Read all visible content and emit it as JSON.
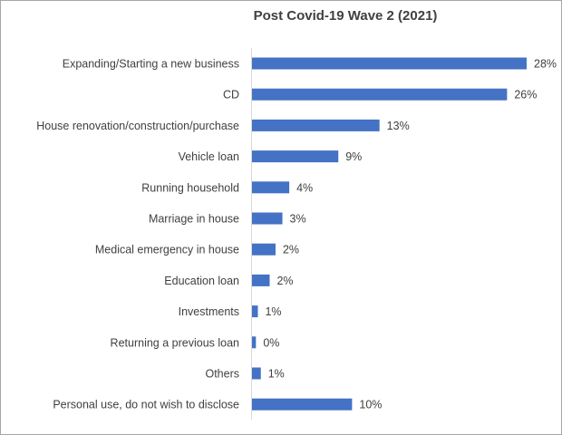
{
  "chart_data": {
    "type": "bar",
    "orientation": "horizontal",
    "title": "Post Covid-19 Wave 2 (2021)",
    "xlabel": "",
    "ylabel": "",
    "xlim": [
      0,
      28
    ],
    "grid": false,
    "legend": "none",
    "bar_color": "#4472c4",
    "categories": [
      "Expanding/Starting a new business",
      "CD",
      "House renovation/construction/purchase",
      "Vehicle loan",
      "Running household",
      "Marriage in house",
      "Medical emergency in house",
      "Education loan",
      "Investments",
      "Returning a previous loan",
      "Others",
      "Personal use, do not wish to disclose"
    ],
    "values": [
      28,
      26,
      13,
      8.8,
      3.8,
      3.1,
      2.4,
      1.8,
      0.6,
      0.4,
      0.9,
      10.2
    ],
    "data_labels": [
      "28%",
      "26%",
      "13%",
      "9%",
      "4%",
      "3%",
      "2%",
      "2%",
      "1%",
      "0%",
      "1%",
      "10%"
    ]
  }
}
